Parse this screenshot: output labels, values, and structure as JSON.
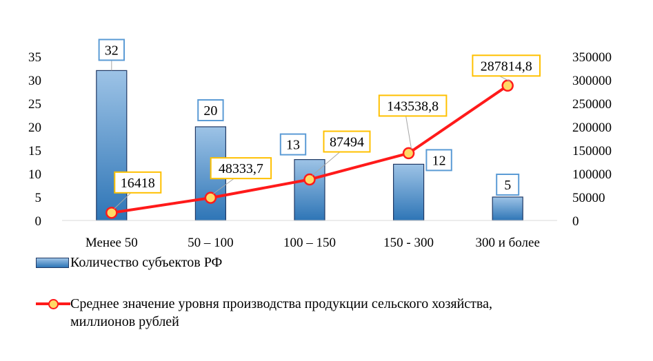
{
  "chart_data": {
    "type": "bar",
    "categories": [
      "Менее  50",
      "50 – 100",
      "100 – 150",
      "150 - 300",
      "300 и более"
    ],
    "series": [
      {
        "name": "Количество субъектов РФ",
        "type": "bar",
        "axis": "left",
        "values": [
          32,
          20,
          13,
          12,
          5
        ],
        "labels": [
          "32",
          "20",
          "13",
          "12",
          "5"
        ]
      },
      {
        "name": "Среднее значение уровня производства продукции сельского хозяйства, миллионов рублей",
        "type": "line",
        "axis": "right",
        "values": [
          16418,
          48333.7,
          87494,
          143538.8,
          287814.8
        ],
        "labels": [
          "16418",
          "48333,7",
          "87494",
          "143538,8",
          "287814,8"
        ]
      }
    ],
    "y_left": {
      "min": 0,
      "max": 35,
      "ticks": [
        "0",
        "5",
        "10",
        "15",
        "20",
        "25",
        "30",
        "35"
      ]
    },
    "y_right": {
      "min": 0,
      "max": 350000,
      "ticks": [
        "0",
        "50000",
        "100000",
        "150000",
        "200000",
        "250000",
        "300000",
        "350000"
      ]
    },
    "grid": false,
    "legend_position": "bottom",
    "colors": {
      "bar_top": "#9dc3e6",
      "bar_bottom": "#2e75b6",
      "bar_edge": "#1f3864",
      "line": "#ff1a1a",
      "marker_fill": "#ffd966",
      "bar_label_border": "#5b9bd5",
      "line_label_border": "#ffc000"
    }
  },
  "legend": {
    "bar_label": "Количество субъектов РФ",
    "line_label_1": "Среднее значение уровня производства продукции сельского хозяйства,",
    "line_label_2": "миллионов рублей"
  }
}
